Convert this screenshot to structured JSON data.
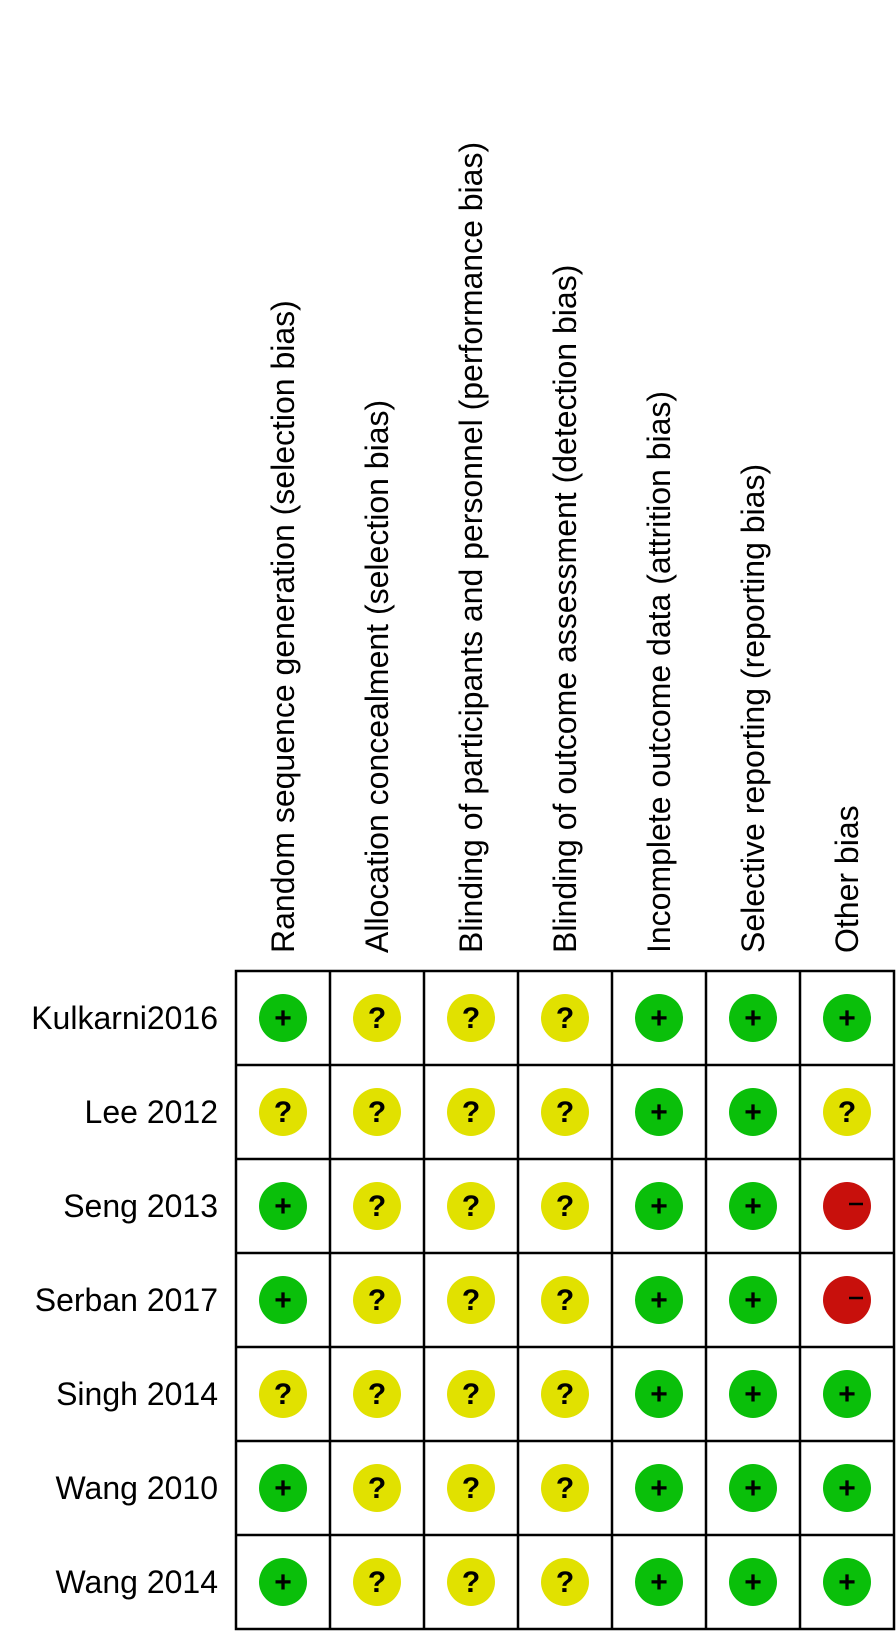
{
  "chart_data": {
    "type": "table",
    "columns": [
      "Random sequence generation (selection bias)",
      "Allocation concealment (selection bias)",
      "Blinding of participants and personnel (performance bias)",
      "Blinding of outcome assessment (detection bias)",
      "Incomplete outcome data (attrition bias)",
      "Selective reporting (reporting bias)",
      "Other bias"
    ],
    "rows": [
      "Kulkarni2016",
      "Lee 2012",
      "Seng 2013",
      "Serban 2017",
      "Singh 2014",
      "Wang 2010",
      "Wang 2014"
    ],
    "values": [
      [
        "+",
        "?",
        "?",
        "?",
        "+",
        "+",
        "+"
      ],
      [
        "?",
        "?",
        "?",
        "?",
        "+",
        "+",
        "?"
      ],
      [
        "+",
        "?",
        "?",
        "?",
        "+",
        "+",
        "-"
      ],
      [
        "+",
        "?",
        "?",
        "?",
        "+",
        "+",
        "-"
      ],
      [
        "?",
        "?",
        "?",
        "?",
        "+",
        "+",
        "+"
      ],
      [
        "+",
        "?",
        "?",
        "?",
        "+",
        "+",
        "+"
      ],
      [
        "+",
        "?",
        "?",
        "?",
        "+",
        "+",
        "+"
      ]
    ],
    "legend": {
      "+": {
        "color": "#0abf0a",
        "glyph": "+"
      },
      "?": {
        "color": "#e1e100",
        "glyph": "?"
      },
      "-": {
        "color": "#c8100c",
        "glyph": "–"
      }
    }
  }
}
